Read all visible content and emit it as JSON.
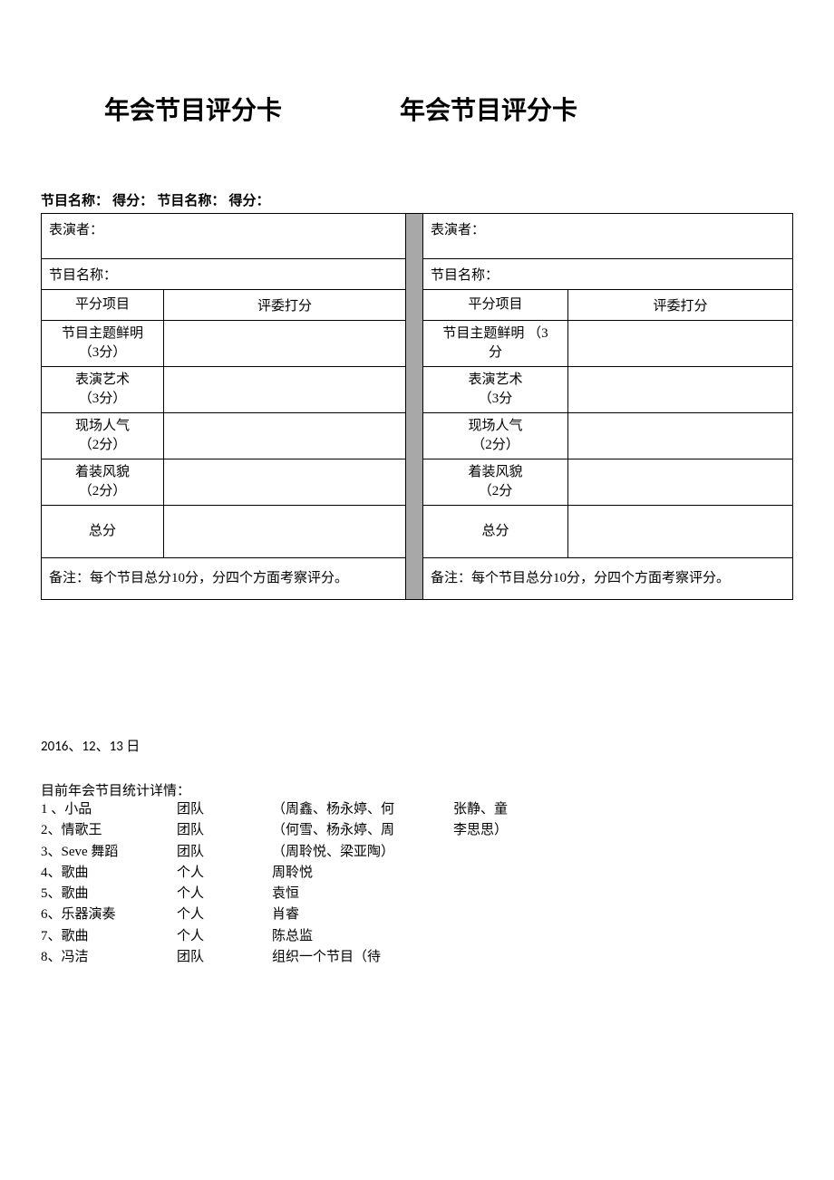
{
  "titles": {
    "left": "年会节目评分卡",
    "right": "年会节目评分卡"
  },
  "header_line": "节目名称：  得分：  节目名称：  得分：",
  "card_left": {
    "performer_label": "表演者：",
    "program_label": "节目名称：",
    "col1": "平分项目",
    "col2": "评委打分",
    "rows": [
      {
        "name": "节目主题鲜明",
        "sub": "（3分）"
      },
      {
        "name": "表演艺术",
        "sub": "（3分）"
      },
      {
        "name": "现场人气",
        "sub": "（2分）"
      },
      {
        "name": "着装风貌",
        "sub": "（2分）"
      }
    ],
    "total": "总分",
    "note": "备注：每个节目总分10分，分四个方面考察评分。"
  },
  "card_right": {
    "performer_label": "表演者：",
    "program_label": "节目名称：",
    "col1": "平分项目",
    "col2": "评委打分",
    "rows": [
      {
        "name": "节目主题鲜明 （3",
        "sub": "分"
      },
      {
        "name": "表演艺术",
        "sub": "（3分"
      },
      {
        "name": "现场人气",
        "sub": "（2分）"
      },
      {
        "name": "着装风貌",
        "sub": "（2分"
      }
    ],
    "total": "总分",
    "note": "备注：每个节目总分10分，分四个方面考察评分。"
  },
  "date_line": "2016、12、13 日",
  "list_title": "目前年会节目统计详情：",
  "programs": [
    {
      "num": "1 、小品",
      "type": "团队",
      "members": "（周鑫、杨永婷、何",
      "extra": "张静、童"
    },
    {
      "num": "2、情歌王",
      "type": "团队",
      "members": "（何雪、杨永婷、周",
      "extra": "李思思）"
    },
    {
      "num": "3、Seve 舞蹈",
      "type": "团队",
      "members": "（周聆悦、梁亚陶）",
      "extra": ""
    },
    {
      "num": "4、歌曲",
      "type": "个人",
      "members": "周聆悦",
      "extra": ""
    },
    {
      "num": "5、歌曲",
      "type": "个人",
      "members": "袁恒",
      "extra": ""
    },
    {
      "num": "6、乐器演奏",
      "type": "个人",
      "members": "肖睿",
      "extra": ""
    },
    {
      "num": "7、歌曲",
      "type": "个人",
      "members": "陈总监",
      "extra": ""
    },
    {
      "num": "8、冯洁",
      "type": "团队",
      "members": "组织一个节目（待",
      "extra": ""
    }
  ]
}
